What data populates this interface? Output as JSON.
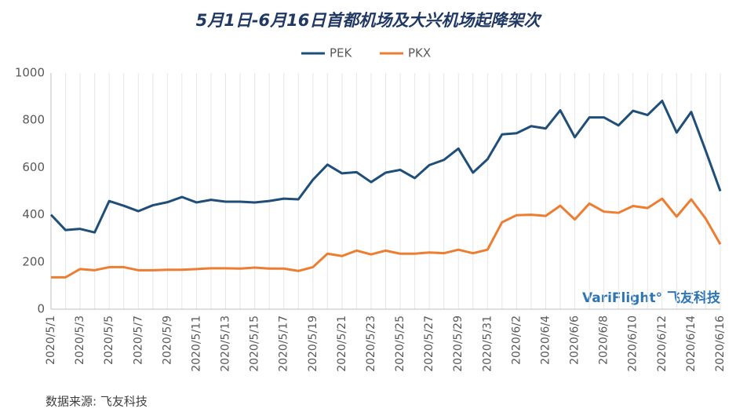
{
  "chart_data": {
    "type": "line",
    "title": "5月1日-6月16日首都机场及大兴机场起降架次",
    "categories": [
      "2020/5/1",
      null,
      "2020/5/3",
      null,
      "2020/5/5",
      null,
      "2020/5/7",
      null,
      "2020/5/9",
      null,
      "2020/5/11",
      null,
      "2020/5/13",
      null,
      "2020/5/15",
      null,
      "2020/5/17",
      null,
      "2020/5/19",
      null,
      "2020/5/21",
      null,
      "2020/5/23",
      null,
      "2020/5/25",
      null,
      "2020/5/27",
      null,
      "2020/5/29",
      null,
      "2020/5/31",
      null,
      "2020/6/2",
      null,
      "2020/6/4",
      null,
      "2020/6/6",
      null,
      "2020/6/8",
      null,
      "2020/6/10",
      null,
      "2020/6/12",
      null,
      "2020/6/14",
      null,
      "2020/6/16"
    ],
    "series": [
      {
        "name": "PEK",
        "color": "#1f4e79",
        "values": [
          400,
          335,
          340,
          325,
          458,
          438,
          415,
          440,
          453,
          475,
          452,
          463,
          455,
          455,
          452,
          458,
          468,
          465,
          548,
          612,
          575,
          580,
          538,
          578,
          590,
          555,
          610,
          632,
          680,
          578,
          635,
          740,
          745,
          775,
          765,
          842,
          728,
          812,
          812,
          778,
          840,
          822,
          882,
          748,
          835,
          670,
          500
        ]
      },
      {
        "name": "PKX",
        "color": "#ed7d31",
        "values": [
          135,
          135,
          170,
          165,
          178,
          178,
          165,
          165,
          167,
          167,
          170,
          173,
          173,
          172,
          176,
          172,
          172,
          162,
          178,
          235,
          225,
          248,
          232,
          248,
          235,
          235,
          240,
          237,
          252,
          237,
          252,
          368,
          398,
          400,
          395,
          438,
          380,
          447,
          413,
          408,
          437,
          428,
          468,
          392,
          465,
          383,
          275
        ]
      }
    ],
    "ylim": [
      0,
      1000
    ],
    "yticks": [
      0,
      200,
      400,
      600,
      800,
      1000
    ],
    "grid": true,
    "legend": "top",
    "watermark": "VariFlight° 飞友科技",
    "source": "数据来源: 飞友科技"
  }
}
